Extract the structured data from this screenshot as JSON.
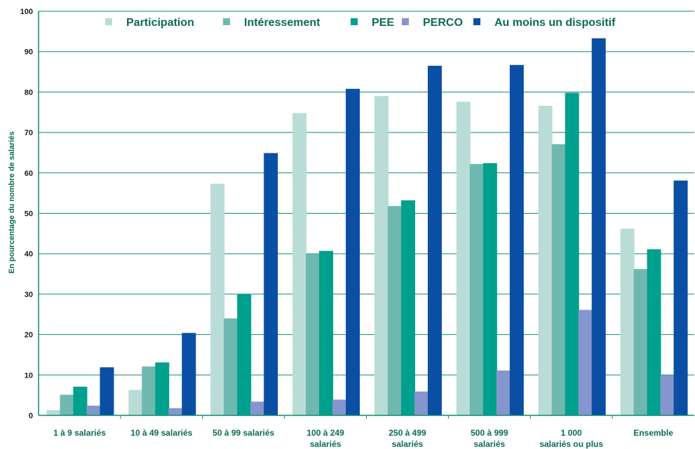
{
  "chart_data": {
    "type": "bar",
    "title": "",
    "xlabel": "",
    "ylabel": "En pourcentage du nombre de salariés",
    "ylim": [
      0,
      100
    ],
    "yticks": [
      0,
      10,
      20,
      30,
      40,
      50,
      60,
      70,
      80,
      90,
      100
    ],
    "grid": true,
    "legend_position": "top",
    "categories": [
      [
        "1 à 9 salariés"
      ],
      [
        "10 à 49 salariés"
      ],
      [
        "50 à 99 salariés"
      ],
      [
        "100 à 249",
        "salariés"
      ],
      [
        "250 à 499",
        "salariés"
      ],
      [
        "500 à 999",
        "salariés"
      ],
      [
        "1 000",
        "salariés ou plus"
      ],
      [
        "Ensemble"
      ]
    ],
    "series": [
      {
        "name": "Participation",
        "color": "#b9dcd6",
        "values": [
          1.3,
          6.3,
          57.3,
          74.8,
          79.0,
          77.6,
          76.6,
          46.2
        ]
      },
      {
        "name": "Intéressement",
        "color": "#6fb8b0",
        "values": [
          5.1,
          12.1,
          24.0,
          40.0,
          51.8,
          62.2,
          67.1,
          36.2
        ]
      },
      {
        "name": "PEE",
        "color": "#00a08e",
        "values": [
          7.1,
          13.1,
          30.0,
          40.7,
          53.2,
          62.4,
          79.8,
          41.1
        ]
      },
      {
        "name": "PERCO",
        "color": "#8595cd",
        "values": [
          2.4,
          1.8,
          3.4,
          3.9,
          5.9,
          11.1,
          26.1,
          10.0
        ]
      },
      {
        "name": "Au moins un dispositif",
        "color": "#0a4fa3",
        "values": [
          11.9,
          20.4,
          64.9,
          80.8,
          86.5,
          86.7,
          93.3,
          58.1
        ]
      }
    ]
  }
}
